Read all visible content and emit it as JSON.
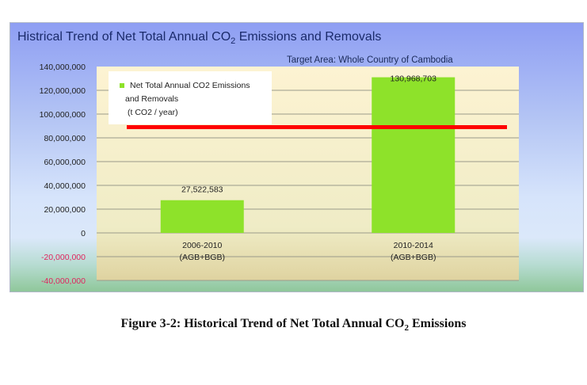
{
  "chart_data": {
    "type": "bar",
    "title": "Histrical Trend of  Net Total Annual CO2 Emissions and Removals",
    "title_parts": {
      "pre": "Histrical Trend of  Net Total Annual CO",
      "sub": "2",
      "post": " Emissions and Removals"
    },
    "subtitle": "Target Area: Whole Country of  Cambodia",
    "categories": [
      [
        "2006-2010",
        "(AGB+BGB)"
      ],
      [
        "2010-2014",
        "(AGB+BGB)"
      ]
    ],
    "series": [
      {
        "name": "Net Total Annual CO2 Emissions and Removals (t CO2 / year)",
        "values": [
          27522583,
          130968703
        ],
        "color": "#8ee22a"
      }
    ],
    "data_labels": [
      "27,522,583",
      "130,968,703"
    ],
    "legend": {
      "lines": [
        "Net Total Annual CO2 Emissions",
        "and Removals",
        "(t CO2 / year)"
      ],
      "placement": "top-left"
    },
    "reference_line": {
      "value": 89000000,
      "color": "#ff0000"
    },
    "ylim": [
      -40000000,
      140000000
    ],
    "yticks": [
      140000000,
      120000000,
      100000000,
      80000000,
      60000000,
      40000000,
      20000000,
      0,
      -20000000,
      -40000000
    ],
    "ytick_labels": [
      "140,000,000",
      "120,000,000",
      "100,000,000",
      "80,000,000",
      "60,000,000",
      "40,000,000",
      "20,000,000",
      "0",
      "-20,000,000",
      "-40,000,000"
    ],
    "negative_label_color": "#e0245e",
    "grid": true
  },
  "caption": {
    "pre": "Figure 3-2: Historical Trend of Net Total Annual CO",
    "sub": "2",
    "post": " Emissions"
  }
}
